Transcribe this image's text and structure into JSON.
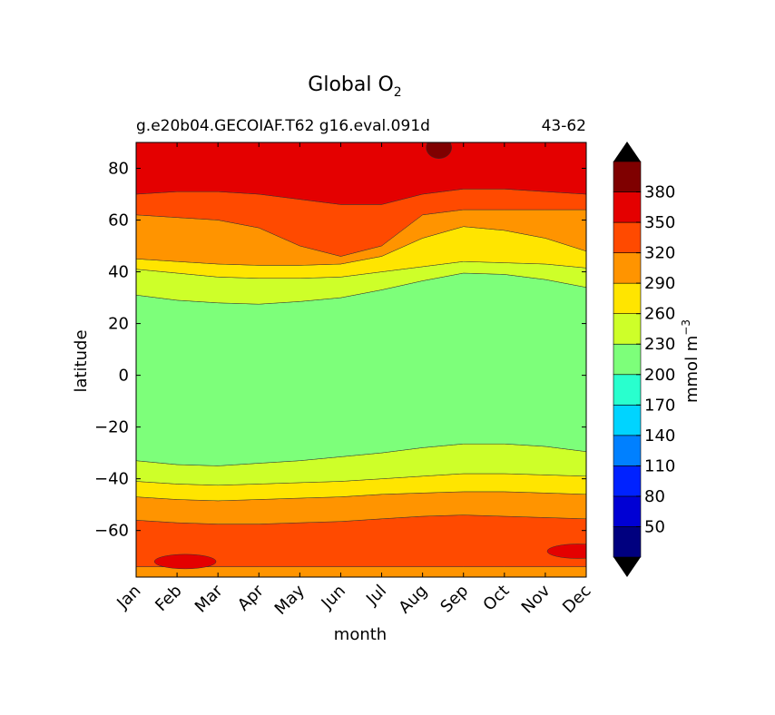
{
  "chart_data": {
    "type": "contour",
    "title": "Global O",
    "title_subscript": "2",
    "subtitle_left": "g.e20b04.GECOIAF.T62 g16.eval.091d",
    "subtitle_right": "43-62",
    "xlabel": "month",
    "ylabel": "latitude",
    "x_categories": [
      "Jan",
      "Feb",
      "Mar",
      "Apr",
      "May",
      "Jun",
      "Jul",
      "Aug",
      "Sep",
      "Oct",
      "Nov",
      "Dec"
    ],
    "xlim": [
      0,
      11
    ],
    "ylim": [
      -78,
      90
    ],
    "y_ticks": [
      80,
      60,
      40,
      20,
      0,
      -20,
      -40,
      -60
    ],
    "colorbar": {
      "label": "mmol m",
      "label_exponent": "−3",
      "levels": [
        20,
        50,
        80,
        110,
        140,
        170,
        200,
        230,
        260,
        290,
        320,
        350,
        380,
        410
      ],
      "tick_labels": [
        "50",
        "80",
        "110",
        "140",
        "170",
        "200",
        "230",
        "260",
        "290",
        "320",
        "350",
        "380"
      ],
      "colors": [
        "#00007f",
        "#0000d4",
        "#0022ff",
        "#0080ff",
        "#00d4ff",
        "#29ffce",
        "#7dff7a",
        "#ceff29",
        "#ffe500",
        "#ff9400",
        "#ff4a00",
        "#e40000",
        "#7f0000"
      ],
      "under_color": "#000000",
      "over_color": "#000000"
    },
    "boundaries": [
      {
        "upper": -74,
        "lower": -78,
        "value": "290-320",
        "upper_lat": [
          -74,
          -74,
          -74,
          -74,
          -74,
          -74,
          -74,
          -74,
          -74,
          -74,
          -74,
          -74
        ]
      },
      {
        "upper": -55,
        "lower": -74,
        "value": "320-350",
        "upper_lat": [
          -56,
          -57,
          -57.5,
          -57.5,
          -57,
          -56.5,
          -55.5,
          -54.5,
          -54,
          -54.5,
          -55,
          -55.5
        ]
      },
      {
        "upper": -46,
        "lower": -55,
        "value": "290-320",
        "upper_lat": [
          -47,
          -48,
          -48.5,
          -48,
          -47.5,
          -47,
          -46,
          -45.5,
          -45,
          -45,
          -45.5,
          -46
        ]
      },
      {
        "upper": -41,
        "lower": -46,
        "value": "260-290",
        "upper_lat": [
          -41,
          -42,
          -42.5,
          -42,
          -41.5,
          -41,
          -40,
          -39,
          -38,
          -38,
          -38.5,
          -39
        ]
      },
      {
        "upper": -33,
        "lower": -41,
        "value": "230-260",
        "upper_lat": [
          -33,
          -34.5,
          -35,
          -34,
          -33,
          -31.5,
          -30,
          -28,
          -26.5,
          -26.5,
          -27.5,
          -29.5
        ]
      },
      {
        "upper": 31,
        "lower": -33,
        "value": "200-230",
        "upper_lat": [
          31,
          29,
          28,
          27.5,
          28.5,
          30,
          33,
          36.5,
          39.5,
          39,
          37,
          34
        ]
      },
      {
        "upper": 40,
        "lower": 31,
        "value": "230-260",
        "upper_lat": [
          41,
          39.5,
          38,
          37.5,
          37.5,
          38,
          40,
          42,
          44,
          43.5,
          43,
          41.5
        ]
      },
      {
        "upper": 45,
        "lower": 40,
        "value": "260-290",
        "upper_lat": [
          45,
          44,
          43,
          42.5,
          42.5,
          43,
          46,
          53,
          57.5,
          56,
          53,
          48
        ]
      },
      {
        "upper": 60,
        "lower": 45,
        "value": "290-320",
        "upper_lat": [
          62,
          61,
          60,
          57,
          50,
          46,
          50,
          62,
          64,
          64,
          64,
          64
        ]
      },
      {
        "upper": 70,
        "lower": 60,
        "value": "320-350",
        "upper_lat": [
          70,
          71,
          71,
          70,
          68,
          66,
          66,
          70,
          72,
          72,
          71,
          70
        ]
      },
      {
        "upper": 90,
        "lower": 70,
        "value": "350-380",
        "upper_lat": [
          90,
          90,
          90,
          90,
          90,
          90,
          90,
          90,
          90,
          90,
          90,
          90
        ]
      }
    ],
    "patches": [
      {
        "value": "380-410",
        "note": "high-latitude maximum near Aug",
        "center_month": 7.4,
        "center_lat": 88,
        "size": "small"
      },
      {
        "value": "350-380",
        "note": "Southern Ocean patch near Jan-Mar",
        "center_month": 1.2,
        "center_lat": -72,
        "size": "medium"
      },
      {
        "value": "350-380",
        "note": "Southern Ocean patch near Dec",
        "center_month": 10.8,
        "center_lat": -68,
        "size": "medium"
      }
    ]
  }
}
